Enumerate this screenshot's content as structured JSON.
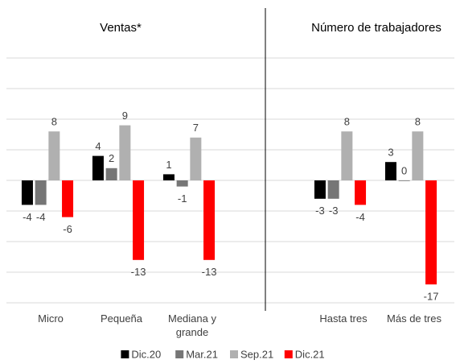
{
  "chart_data": {
    "type": "bar",
    "grid": true,
    "legend": "bottom",
    "ylim": [
      -20,
      20
    ],
    "yticks": [
      -20,
      -15,
      -10,
      -5,
      0,
      5,
      10,
      15,
      20
    ],
    "series": [
      {
        "name": "Dic.20",
        "color": "#000000"
      },
      {
        "name": "Mar.21",
        "color": "#767676"
      },
      {
        "name": "Sep.21",
        "color": "#b0b0b0"
      },
      {
        "name": "Dic.21",
        "color": "#ff0000"
      }
    ],
    "panels": [
      {
        "title": "Ventas*",
        "categories": [
          "Micro",
          "Pequeña",
          "Mediana y grande"
        ],
        "values": [
          [
            -4,
            4,
            1
          ],
          [
            -4,
            2,
            -1
          ],
          [
            8,
            9,
            7
          ],
          [
            -6,
            -13,
            -13
          ]
        ]
      },
      {
        "title": "Número de trabajadores",
        "categories": [
          "Hasta tres",
          "Más de tres"
        ],
        "values": [
          [
            -3,
            3
          ],
          [
            -3,
            0
          ],
          [
            8,
            8
          ],
          [
            -4,
            -17
          ]
        ]
      }
    ]
  }
}
